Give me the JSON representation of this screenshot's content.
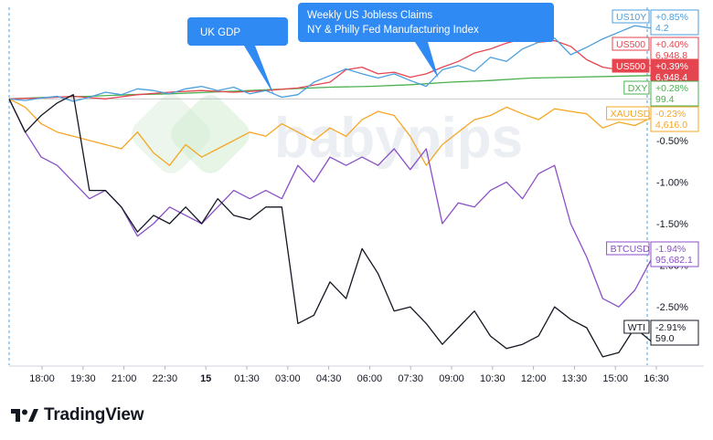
{
  "brand": {
    "name": "TradingView"
  },
  "watermark": "babypips",
  "colors": {
    "US10Y": "#4a9fdf",
    "US500": "#e5454f",
    "DXY": "#4caf50",
    "XAUUSD": "#f5a623",
    "BTCUSD": "#8a4fc8",
    "WTI": "#131722",
    "callout": "#2f8af3",
    "grid": "#eef0f3"
  },
  "chart_data": {
    "type": "line",
    "title": "",
    "xlabel": "",
    "ylabel": "",
    "x_ticks": [
      "18:00",
      "19:30",
      "21:00",
      "22:30",
      "15",
      "01:30",
      "03:00",
      "04:30",
      "06:00",
      "07:30",
      "09:00",
      "10:30",
      "12:00",
      "13:30",
      "15:00",
      "16:30"
    ],
    "y_ticks": [
      "-0.50%",
      "-1.00%",
      "-1.50%",
      "-2.00%",
      "-2.50%"
    ],
    "ylim": [
      -3.2,
      1.1
    ],
    "y_unit": "percent change",
    "x_range": [
      0,
      160
    ],
    "grid": true,
    "legend": "right",
    "events": [
      {
        "label": "UK GDP",
        "x": 66
      },
      {
        "label": "Weekly US Jobless Claims",
        "label2": "NY & Philly Fed Manufacturing Index",
        "x": 107
      }
    ],
    "series": [
      {
        "name": "US10Y",
        "change": "+0.85%",
        "price": "4.2",
        "x": [
          0,
          4,
          8,
          12,
          16,
          20,
          24,
          28,
          32,
          36,
          40,
          44,
          48,
          52,
          56,
          60,
          64,
          68,
          72,
          76,
          80,
          84,
          88,
          92,
          96,
          100,
          104,
          108,
          112,
          116,
          120,
          124,
          128,
          132,
          136,
          140,
          144,
          148,
          152,
          156,
          160
        ],
        "y": [
          0.0,
          -0.02,
          0.01,
          0.03,
          -0.03,
          0.02,
          0.08,
          0.05,
          0.12,
          0.1,
          0.06,
          0.12,
          0.15,
          0.1,
          0.14,
          0.06,
          0.1,
          0.02,
          0.05,
          0.2,
          0.28,
          0.36,
          0.3,
          0.25,
          0.3,
          0.22,
          0.15,
          0.35,
          0.4,
          0.33,
          0.5,
          0.45,
          0.6,
          0.68,
          0.73,
          0.53,
          0.62,
          0.72,
          0.8,
          0.88,
          0.85
        ]
      },
      {
        "name": "US500",
        "change": "+0.40%",
        "price": "6,948.8",
        "x": [
          0,
          8,
          16,
          24,
          32,
          40,
          48,
          56,
          64,
          72,
          80,
          84,
          88,
          92,
          96,
          100,
          104,
          108,
          112,
          116,
          120,
          124,
          128,
          132,
          136,
          140,
          144,
          148,
          152,
          156,
          160
        ],
        "y": [
          0.0,
          0.01,
          0.03,
          0.0,
          0.05,
          0.08,
          0.1,
          0.08,
          0.1,
          0.13,
          0.2,
          0.35,
          0.38,
          0.3,
          0.32,
          0.26,
          0.3,
          0.38,
          0.45,
          0.55,
          0.6,
          0.67,
          0.72,
          0.68,
          0.7,
          0.63,
          0.47,
          0.38,
          0.35,
          0.38,
          0.4
        ]
      },
      {
        "name": "US500 (current)",
        "change": "+0.39%",
        "price": "6,948.4",
        "x": [],
        "y": []
      },
      {
        "name": "DXY",
        "change": "+0.28%",
        "price": "99.4",
        "x": [
          0,
          10,
          20,
          30,
          40,
          50,
          60,
          70,
          80,
          90,
          100,
          110,
          120,
          130,
          140,
          150,
          160
        ],
        "y": [
          0.0,
          0.02,
          0.03,
          0.05,
          0.06,
          0.08,
          0.1,
          0.12,
          0.14,
          0.15,
          0.17,
          0.2,
          0.22,
          0.25,
          0.26,
          0.27,
          0.28
        ]
      },
      {
        "name": "XAUUSD",
        "change": "-0.23%",
        "price": "4,616.0",
        "x": [
          0,
          4,
          8,
          12,
          16,
          20,
          24,
          28,
          32,
          36,
          40,
          44,
          48,
          52,
          56,
          60,
          64,
          68,
          72,
          76,
          80,
          84,
          88,
          92,
          96,
          100,
          104,
          108,
          112,
          116,
          120,
          124,
          128,
          132,
          136,
          140,
          144,
          148,
          152,
          156,
          160
        ],
        "y": [
          0.0,
          -0.1,
          -0.3,
          -0.4,
          -0.45,
          -0.5,
          -0.55,
          -0.6,
          -0.4,
          -0.65,
          -0.8,
          -0.55,
          -0.7,
          -0.6,
          -0.5,
          -0.4,
          -0.45,
          -0.3,
          -0.4,
          -0.5,
          -0.35,
          -0.45,
          -0.25,
          -0.15,
          -0.2,
          -0.45,
          -0.8,
          -0.55,
          -0.4,
          -0.25,
          -0.2,
          -0.1,
          -0.18,
          -0.25,
          -0.12,
          -0.15,
          -0.18,
          -0.35,
          -0.28,
          -0.32,
          -0.23
        ]
      },
      {
        "name": "BTCUSD",
        "change": "-1.94%",
        "price": "95,682.1",
        "x": [
          0,
          4,
          8,
          12,
          16,
          20,
          24,
          28,
          32,
          36,
          40,
          44,
          48,
          52,
          56,
          60,
          64,
          68,
          72,
          76,
          80,
          84,
          88,
          92,
          96,
          100,
          104,
          108,
          112,
          116,
          120,
          124,
          128,
          132,
          136,
          140,
          144,
          148,
          152,
          156,
          160
        ],
        "y": [
          0.0,
          -0.4,
          -0.7,
          -0.8,
          -1.0,
          -1.2,
          -1.1,
          -1.3,
          -1.65,
          -1.5,
          -1.3,
          -1.4,
          -1.5,
          -1.3,
          -1.1,
          -1.2,
          -1.1,
          -1.2,
          -0.8,
          -1.0,
          -0.7,
          -0.8,
          -0.7,
          -0.8,
          -0.6,
          -0.85,
          -0.6,
          -1.5,
          -1.25,
          -1.3,
          -1.1,
          -1.0,
          -1.2,
          -0.9,
          -0.8,
          -1.5,
          -1.9,
          -2.4,
          -2.5,
          -2.3,
          -1.94
        ]
      },
      {
        "name": "WTI",
        "change": "-2.91%",
        "price": "59.0",
        "x": [
          0,
          4,
          8,
          12,
          16,
          20,
          24,
          28,
          32,
          36,
          40,
          44,
          48,
          52,
          56,
          60,
          64,
          68,
          72,
          76,
          80,
          84,
          88,
          92,
          96,
          100,
          104,
          108,
          112,
          116,
          120,
          124,
          128,
          132,
          136,
          140,
          144,
          148,
          152,
          156,
          160
        ],
        "y": [
          0.0,
          -0.4,
          -0.2,
          -0.05,
          0.05,
          -1.1,
          -1.1,
          -1.3,
          -1.6,
          -1.4,
          -1.5,
          -1.3,
          -1.5,
          -1.2,
          -1.4,
          -1.45,
          -1.3,
          -1.3,
          -2.7,
          -2.6,
          -2.2,
          -2.4,
          -1.8,
          -2.1,
          -2.55,
          -2.5,
          -2.7,
          -2.95,
          -2.75,
          -2.55,
          -2.85,
          -3.0,
          -2.95,
          -2.85,
          -2.5,
          -2.65,
          -2.75,
          -3.1,
          -3.05,
          -2.75,
          -2.91
        ]
      }
    ]
  }
}
